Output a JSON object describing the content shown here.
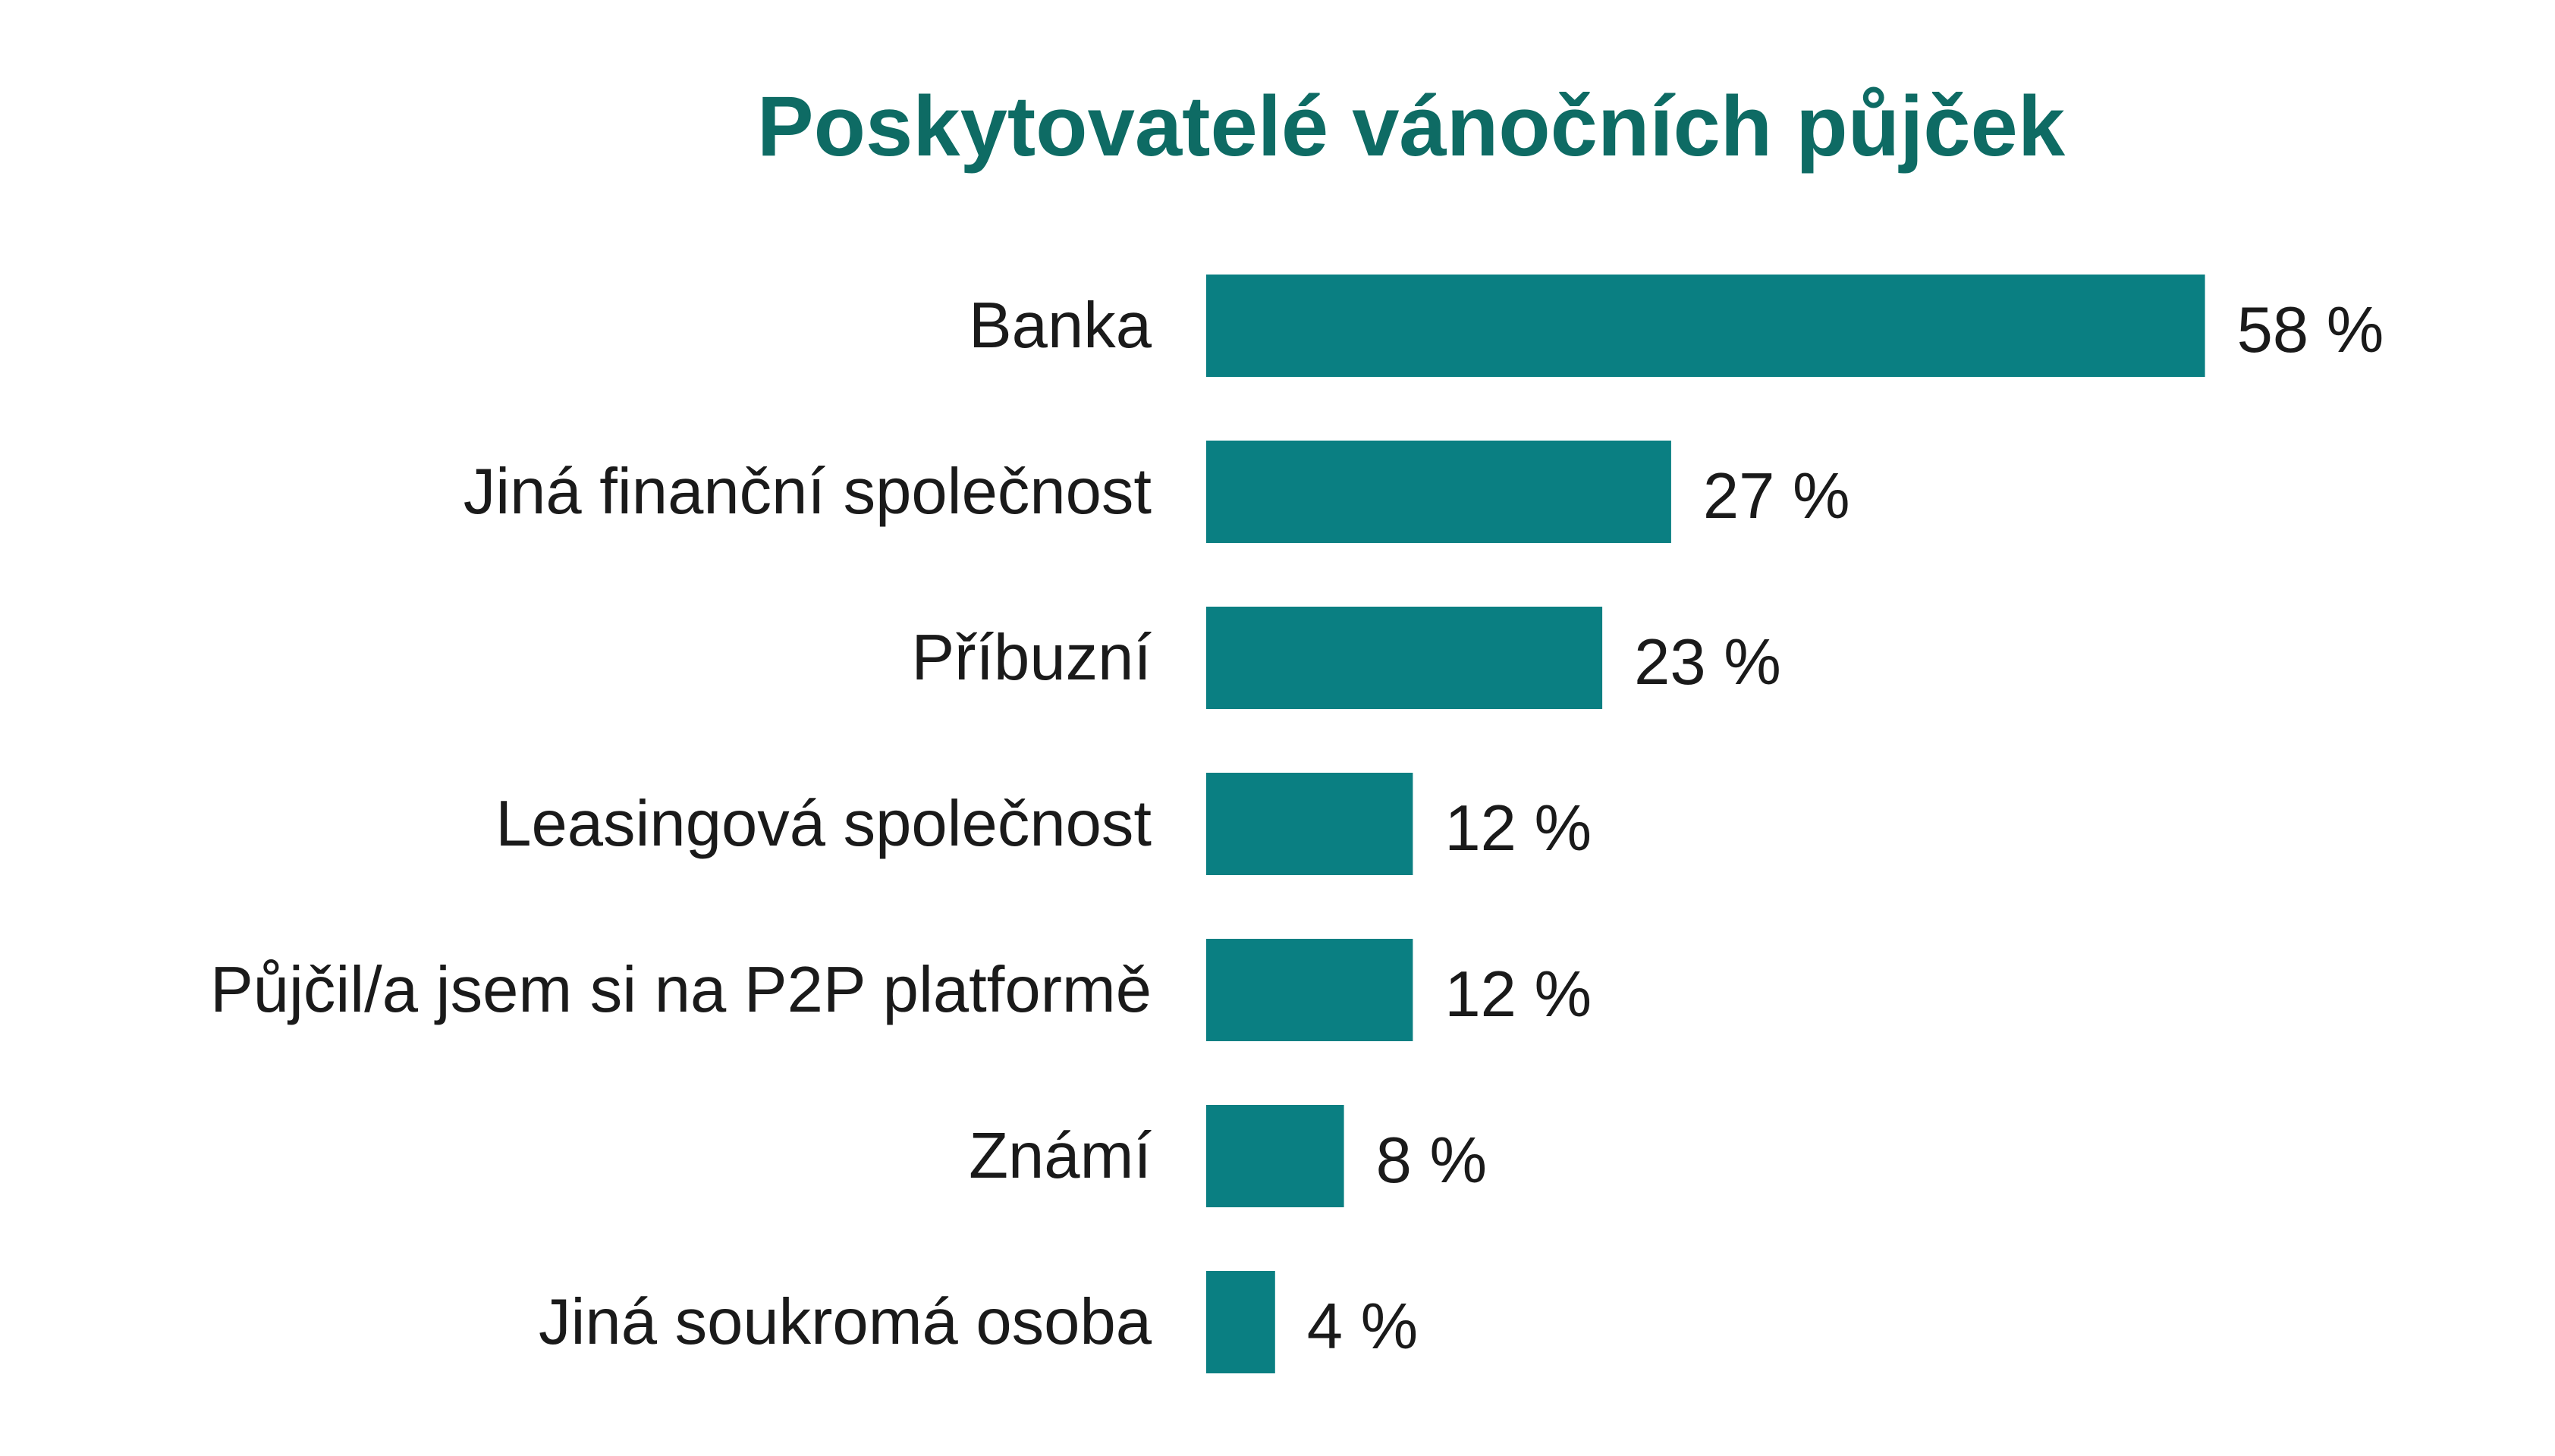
{
  "chart_data": {
    "type": "bar",
    "orientation": "horizontal",
    "title": "Poskytovatelé vánočních půjček",
    "categories": [
      "Banka",
      "Jiná finanční společnost",
      "Příbuzní",
      "Leasingová společnost",
      "Půjčil/a jsem si na P2P platformě",
      "Známí",
      "Jiná soukromá osoba"
    ],
    "values": [
      58,
      27,
      23,
      12,
      12,
      8,
      4
    ],
    "value_labels": [
      "58 %",
      "27 %",
      "23 %",
      "12 %",
      "12 %",
      "8 %",
      "4 %"
    ],
    "xlabel": "",
    "ylabel": "",
    "unit": "%",
    "grid": false,
    "legend": "none",
    "colors": {
      "bar": "#0a7f82",
      "title": "#0e6b64",
      "text": "#1a1a1a"
    }
  }
}
